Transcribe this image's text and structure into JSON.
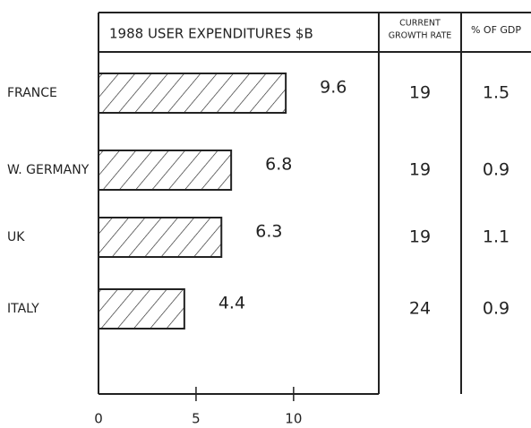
{
  "chart_data": {
    "type": "bar",
    "orientation": "horizontal",
    "title": "1988 USER EXPENDITURES $B",
    "categories": [
      "FRANCE",
      "W. GERMANY",
      "UK",
      "ITALY"
    ],
    "values": [
      9.6,
      6.8,
      6.3,
      4.4
    ],
    "color": "#222222",
    "xlim": [
      0,
      14
    ],
    "xticks": [
      0,
      5,
      10
    ],
    "columns": [
      {
        "header": [
          "CURRENT",
          "GROWTH RATE"
        ],
        "values": [
          19,
          19,
          19,
          24
        ]
      },
      {
        "header": [
          "% OF GDP"
        ],
        "values": [
          1.5,
          0.9,
          1.1,
          0.9
        ]
      }
    ]
  }
}
